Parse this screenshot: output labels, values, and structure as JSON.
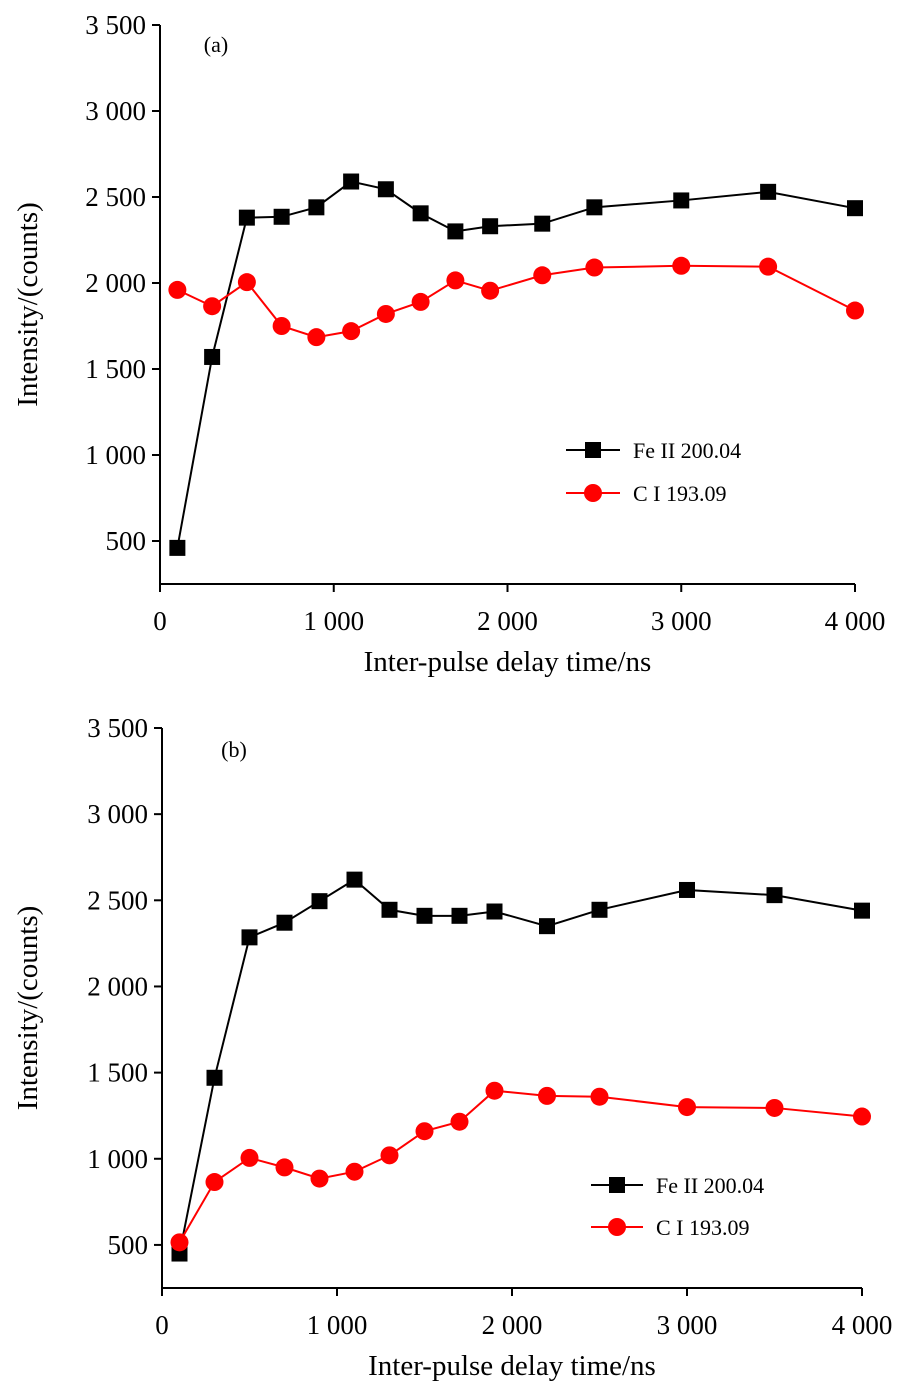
{
  "chart_data": [
    {
      "type": "line",
      "panel_label": "(a)",
      "xlabel": "Inter-pulse delay time/ns",
      "ylabel": "Intensity/(counts)",
      "xlim": [
        0,
        4000
      ],
      "ylim": [
        250,
        3500
      ],
      "xticks": [
        0,
        1000,
        2000,
        3000,
        4000
      ],
      "xtick_labels": [
        "0",
        "1 000",
        "2 000",
        "3 000",
        "4 000"
      ],
      "yticks": [
        500,
        1000,
        1500,
        2000,
        2500,
        3000,
        3500
      ],
      "ytick_labels": [
        "500",
        "1 000",
        "1 500",
        "2 000",
        "2 500",
        "3 000",
        "3 500"
      ],
      "legend_position": "lower-right",
      "grid": false,
      "x": [
        100,
        300,
        500,
        700,
        900,
        1100,
        1300,
        1500,
        1700,
        1900,
        2200,
        2500,
        3000,
        3500,
        4000
      ],
      "series": [
        {
          "name": "Fe II 200.04",
          "marker": "square",
          "color": "#000000",
          "values": [
            460,
            1570,
            2380,
            2385,
            2440,
            2590,
            2545,
            2405,
            2300,
            2330,
            2345,
            2440,
            2480,
            2530,
            2435
          ]
        },
        {
          "name": "C I 193.09",
          "marker": "circle",
          "color": "#ff0000",
          "values": [
            1960,
            1865,
            2005,
            1750,
            1685,
            1720,
            1820,
            1890,
            2015,
            1955,
            2045,
            2090,
            2100,
            2095,
            1840
          ]
        }
      ]
    },
    {
      "type": "line",
      "panel_label": "(b)",
      "xlabel": "Inter-pulse delay time/ns",
      "ylabel": "Intensity/(counts)",
      "xlim": [
        0,
        4000
      ],
      "ylim": [
        250,
        3500
      ],
      "xticks": [
        0,
        1000,
        2000,
        3000,
        4000
      ],
      "xtick_labels": [
        "0",
        "1 000",
        "2 000",
        "3 000",
        "4 000"
      ],
      "yticks": [
        500,
        1000,
        1500,
        2000,
        2500,
        3000,
        3500
      ],
      "ytick_labels": [
        "500",
        "1 000",
        "1 500",
        "2 000",
        "2 500",
        "3 000",
        "3 500"
      ],
      "legend_position": "lower-right",
      "grid": false,
      "x": [
        100,
        300,
        500,
        700,
        900,
        1100,
        1300,
        1500,
        1700,
        1900,
        2200,
        2500,
        3000,
        3500,
        4000
      ],
      "series": [
        {
          "name": "Fe II 200.04",
          "marker": "square",
          "color": "#000000",
          "values": [
            450,
            1470,
            2285,
            2370,
            2495,
            2620,
            2445,
            2410,
            2410,
            2435,
            2350,
            2445,
            2560,
            2530,
            2440
          ]
        },
        {
          "name": "C I 193.09",
          "marker": "circle",
          "color": "#ff0000",
          "values": [
            515,
            865,
            1005,
            950,
            885,
            925,
            1020,
            1160,
            1215,
            1395,
            1365,
            1360,
            1300,
            1295,
            1245
          ]
        }
      ]
    }
  ]
}
